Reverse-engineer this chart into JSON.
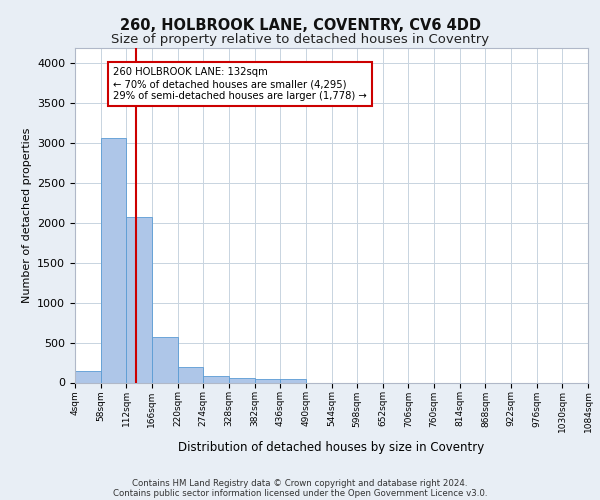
{
  "title_line1": "260, HOLBROOK LANE, COVENTRY, CV6 4DD",
  "title_line2": "Size of property relative to detached houses in Coventry",
  "xlabel": "Distribution of detached houses by size in Coventry",
  "ylabel": "Number of detached properties",
  "footer_line1": "Contains HM Land Registry data © Crown copyright and database right 2024.",
  "footer_line2": "Contains public sector information licensed under the Open Government Licence v3.0.",
  "bin_edges": [
    4,
    58,
    112,
    166,
    220,
    274,
    328,
    382,
    436,
    490,
    544,
    598,
    652,
    706,
    760,
    814,
    868,
    922,
    976,
    1030,
    1084
  ],
  "bar_heights": [
    140,
    3060,
    2070,
    570,
    200,
    80,
    55,
    40,
    50,
    0,
    0,
    0,
    0,
    0,
    0,
    0,
    0,
    0,
    0,
    0
  ],
  "bar_color": "#aec6e8",
  "bar_edgecolor": "#5a9bd4",
  "vline_x": 132,
  "vline_color": "#cc0000",
  "annotation_text": "260 HOLBROOK LANE: 132sqm\n← 70% of detached houses are smaller (4,295)\n29% of semi-detached houses are larger (1,778) →",
  "annotation_box_edgecolor": "#cc0000",
  "ylim": [
    0,
    4200
  ],
  "xlim": [
    4,
    1084
  ],
  "bg_color": "#e8eef5",
  "plot_bg_color": "#ffffff",
  "grid_color": "#c8d4e0",
  "title_fontsize": 10.5,
  "subtitle_fontsize": 9.5,
  "yticks": [
    0,
    500,
    1000,
    1500,
    2000,
    2500,
    3000,
    3500,
    4000
  ]
}
